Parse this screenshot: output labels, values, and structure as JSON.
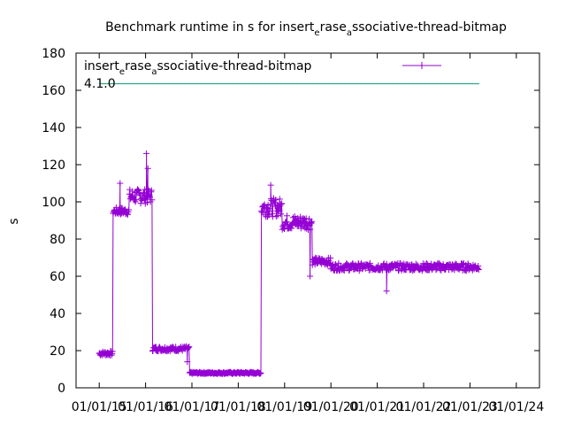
{
  "chart_data": {
    "type": "line",
    "title": {
      "text": "Benchmark runtime in s for insert",
      "sub1": "e",
      "mid": "rase",
      "sub2": "a",
      "tail": "ssociative-thread-bitmap"
    },
    "ylabel": "s",
    "xlabel": "",
    "ylim": [
      0,
      180
    ],
    "yticks": [
      0,
      20,
      40,
      60,
      80,
      100,
      120,
      140,
      160,
      180
    ],
    "xticks": [
      "01/01/15",
      "01/01/16",
      "01/01/17",
      "01/01/18",
      "01/01/19",
      "01/01/20",
      "01/01/21",
      "01/01/22",
      "01/01/23",
      "01/01/24"
    ],
    "grid": false,
    "legend_position": "top-left",
    "series": [
      {
        "name": "insert_erase_associative-thread-bitmap",
        "name_parts": {
          "a": "insert",
          "b": "e",
          "c": "rase",
          "d": "a",
          "e": "ssociative-thread-bitmap"
        },
        "color": "#9400d3",
        "marker": "+",
        "segments": [
          {
            "from": 2015.0,
            "to": 2015.3,
            "level": 18.5,
            "noise": 1.2
          },
          {
            "from": 2015.3,
            "to": 2015.65,
            "level": 95,
            "noise": 2
          },
          {
            "from": 2015.65,
            "to": 2016.15,
            "level": 103,
            "noise": 4
          },
          {
            "from": 2016.15,
            "to": 2016.95,
            "level": 21,
            "noise": 1.3
          },
          {
            "from": 2016.95,
            "to": 2018.5,
            "level": 8,
            "noise": 0.5
          },
          {
            "from": 2018.5,
            "to": 2018.95,
            "level": 97,
            "noise": 5
          },
          {
            "from": 2018.95,
            "to": 2019.6,
            "level": 89,
            "noise": 4
          },
          {
            "from": 2019.6,
            "to": 2020.0,
            "level": 68,
            "noise": 2
          },
          {
            "from": 2020.0,
            "to": 2023.2,
            "level": 65,
            "noise": 2
          }
        ],
        "spikes": [
          {
            "x": 2015.45,
            "y": 110
          },
          {
            "x": 2016.02,
            "y": 126
          },
          {
            "x": 2016.05,
            "y": 118
          },
          {
            "x": 2018.7,
            "y": 109
          },
          {
            "x": 2021.2,
            "y": 52
          },
          {
            "x": 2019.55,
            "y": 60
          },
          {
            "x": 2016.9,
            "y": 14
          }
        ]
      },
      {
        "name": "4.1.0",
        "color": "#009e73",
        "marker": "none",
        "x": [
          2015.0,
          2023.2
        ],
        "values": [
          163.5,
          163.5
        ]
      }
    ]
  }
}
